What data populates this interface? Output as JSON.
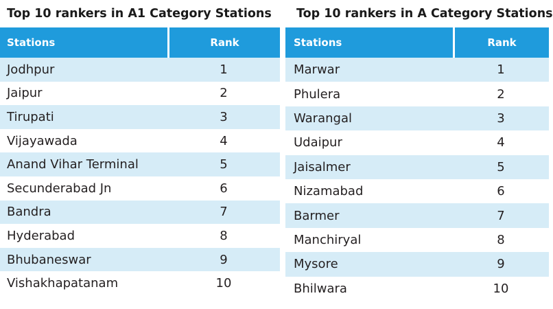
{
  "left": {
    "title": "Top 10 rankers in A1 Category Stations",
    "header": {
      "station": "Stations",
      "rank": "Rank"
    },
    "rows": [
      {
        "station": "Jodhpur",
        "rank": "1"
      },
      {
        "station": "Jaipur",
        "rank": "2"
      },
      {
        "station": "Tirupati",
        "rank": "3"
      },
      {
        "station": "Vijayawada",
        "rank": "4"
      },
      {
        "station": "Anand Vihar Terminal",
        "rank": "5"
      },
      {
        "station": "Secunderabad Jn",
        "rank": "6"
      },
      {
        "station": "Bandra",
        "rank": "7"
      },
      {
        "station": "Hyderabad",
        "rank": "8"
      },
      {
        "station": "Bhubaneswar",
        "rank": "9"
      },
      {
        "station": "Vishakhapatanam",
        "rank": "10"
      }
    ]
  },
  "right": {
    "title": "Top 10 rankers in A Category Stations",
    "header": {
      "station": "Stations",
      "rank": "Rank"
    },
    "rows": [
      {
        "station": "Marwar",
        "rank": "1"
      },
      {
        "station": "Phulera",
        "rank": "2"
      },
      {
        "station": "Warangal",
        "rank": "3"
      },
      {
        "station": "Udaipur",
        "rank": "4"
      },
      {
        "station": "Jaisalmer",
        "rank": "5"
      },
      {
        "station": "Nizamabad",
        "rank": "6"
      },
      {
        "station": "Barmer",
        "rank": "7"
      },
      {
        "station": "Manchiryal",
        "rank": "8"
      },
      {
        "station": "Mysore",
        "rank": "9"
      },
      {
        "station": "Bhilwara",
        "rank": "10"
      }
    ]
  },
  "colors": {
    "header": "#1f9bdc",
    "shaded_row": "#d6ecf7"
  }
}
